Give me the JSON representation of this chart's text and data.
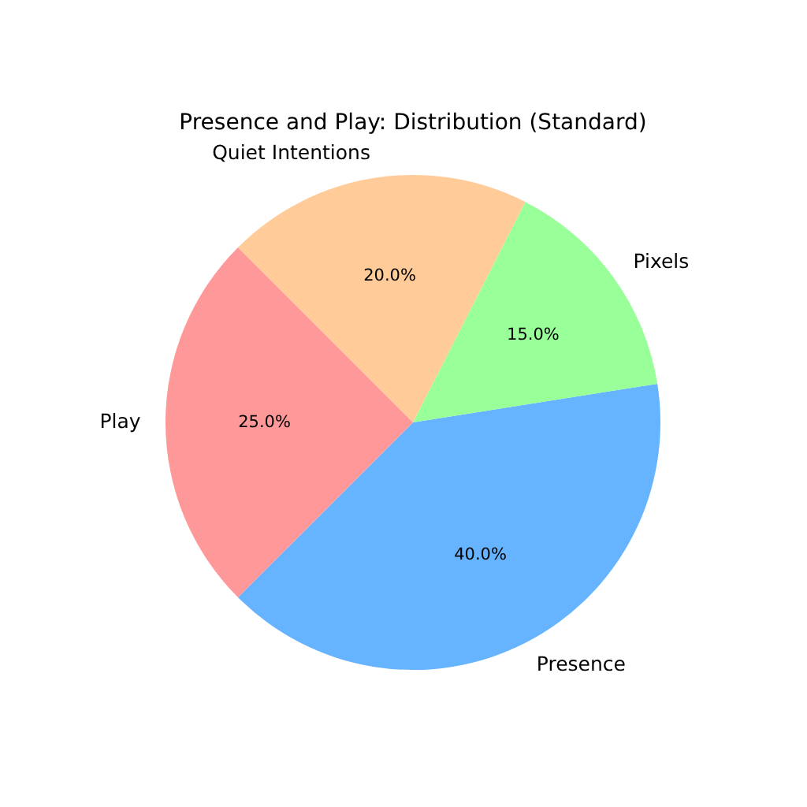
{
  "chart_data": {
    "type": "pie",
    "title": "Presence and Play: Distribution (Standard)",
    "categories": [
      "Presence",
      "Pixels",
      "Quiet Intentions",
      "Play"
    ],
    "values": [
      40,
      15,
      20,
      25
    ],
    "colors": [
      "#66b3ff",
      "#99ff99",
      "#ffcc99",
      "#ff9999"
    ],
    "value_labels": [
      "40.0%",
      "15.0%",
      "20.0%",
      "25.0%"
    ]
  }
}
